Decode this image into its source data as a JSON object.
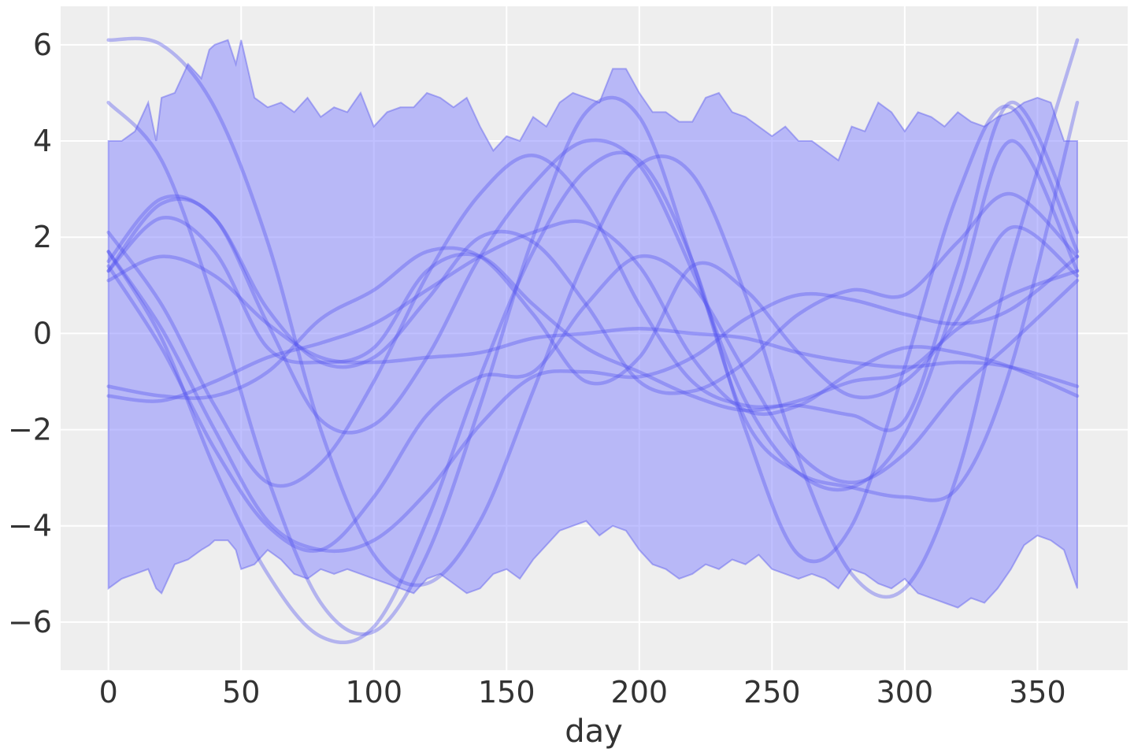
{
  "chart_data": {
    "type": "line",
    "title": "",
    "xlabel": "day",
    "ylabel": "",
    "xlim": [
      -18,
      384
    ],
    "ylim": [
      -7.0,
      6.8
    ],
    "xticks": [
      0,
      50,
      100,
      150,
      200,
      250,
      300,
      350
    ],
    "yticks": [
      -6,
      -4,
      -2,
      0,
      2,
      4,
      6
    ],
    "xtick_labels": [
      "0",
      "50",
      "100",
      "150",
      "200",
      "250",
      "300",
      "350"
    ],
    "ytick_labels": [
      "−6",
      "−4",
      "−2",
      "0",
      "2",
      "4",
      "6"
    ],
    "grid": true,
    "colors": {
      "background": "#eeeeee",
      "grid": "#ffffff",
      "band_fill": "#8c8cff",
      "band_edge": "#6666ee",
      "line": "#5555ee",
      "text": "#333333"
    },
    "band": {
      "x": [
        0,
        5,
        10,
        15,
        18,
        20,
        25,
        30,
        35,
        38,
        40,
        45,
        48,
        50,
        55,
        60,
        65,
        70,
        75,
        80,
        85,
        90,
        95,
        100,
        105,
        110,
        115,
        120,
        125,
        130,
        135,
        140,
        145,
        150,
        155,
        160,
        165,
        170,
        175,
        180,
        185,
        190,
        195,
        200,
        205,
        210,
        215,
        220,
        225,
        230,
        235,
        240,
        245,
        250,
        255,
        260,
        265,
        270,
        275,
        280,
        285,
        290,
        295,
        300,
        305,
        310,
        315,
        320,
        325,
        330,
        335,
        340,
        345,
        350,
        355,
        360,
        365
      ],
      "upper": [
        4.0,
        4.0,
        4.2,
        4.8,
        4.0,
        4.9,
        5.0,
        5.6,
        5.3,
        5.9,
        6.0,
        6.1,
        5.6,
        6.1,
        4.9,
        4.7,
        4.8,
        4.6,
        4.9,
        4.5,
        4.7,
        4.6,
        5.0,
        4.3,
        4.6,
        4.7,
        4.7,
        5.0,
        4.9,
        4.7,
        4.9,
        4.3,
        3.8,
        4.1,
        4.0,
        4.5,
        4.3,
        4.8,
        5.0,
        4.9,
        4.8,
        5.5,
        5.5,
        5.0,
        4.6,
        4.6,
        4.4,
        4.4,
        4.9,
        5.0,
        4.6,
        4.5,
        4.3,
        4.1,
        4.3,
        4.0,
        4.0,
        3.8,
        3.6,
        4.3,
        4.2,
        4.8,
        4.6,
        4.2,
        4.6,
        4.5,
        4.3,
        4.6,
        4.4,
        4.3,
        4.5,
        4.6,
        4.8,
        4.9,
        4.8,
        4.0,
        4.0
      ],
      "lower": [
        -5.3,
        -5.1,
        -5.0,
        -4.9,
        -5.3,
        -5.4,
        -4.8,
        -4.7,
        -4.5,
        -4.4,
        -4.3,
        -4.3,
        -4.5,
        -4.9,
        -4.8,
        -4.5,
        -4.7,
        -5.0,
        -5.1,
        -4.9,
        -5.0,
        -4.9,
        -5.0,
        -5.1,
        -5.2,
        -5.3,
        -5.4,
        -5.1,
        -5.0,
        -5.2,
        -5.4,
        -5.3,
        -5.0,
        -4.9,
        -5.1,
        -4.7,
        -4.4,
        -4.1,
        -4.0,
        -3.9,
        -4.2,
        -4.0,
        -4.1,
        -4.5,
        -4.8,
        -4.9,
        -5.1,
        -5.0,
        -4.8,
        -4.9,
        -4.7,
        -4.8,
        -4.6,
        -4.9,
        -5.0,
        -5.1,
        -5.0,
        -5.1,
        -5.3,
        -4.9,
        -5.0,
        -5.2,
        -5.3,
        -5.1,
        -5.4,
        -5.5,
        -5.6,
        -5.7,
        -5.5,
        -5.6,
        -5.3,
        -4.9,
        -4.4,
        -4.2,
        -4.3,
        -4.5,
        -5.3
      ]
    },
    "series": [
      {
        "x": [
          0,
          20,
          40,
          60,
          80,
          100,
          120,
          140,
          160,
          180,
          200,
          220,
          240,
          260,
          280,
          300,
          320,
          340,
          365
        ],
        "y": [
          6.1,
          6.0,
          4.7,
          1.9,
          -2.0,
          -4.6,
          -5.2,
          -3.9,
          -1.2,
          1.6,
          3.5,
          3.3,
          0.8,
          -2.6,
          -5.0,
          -5.3,
          -2.9,
          1.5,
          6.1
        ]
      },
      {
        "x": [
          0,
          20,
          40,
          60,
          80,
          100,
          120,
          140,
          160,
          180,
          200,
          220,
          240,
          260,
          280,
          300,
          320,
          340,
          365
        ],
        "y": [
          4.8,
          3.6,
          0.6,
          -3.0,
          -5.6,
          -6.2,
          -4.6,
          -1.5,
          2.0,
          4.6,
          4.5,
          1.5,
          -1.8,
          -2.9,
          -3.2,
          -3.4,
          -3.2,
          -0.7,
          4.8
        ]
      },
      {
        "x": [
          0,
          20,
          40,
          60,
          80,
          100,
          120,
          140,
          160,
          180,
          200,
          220,
          240,
          260,
          280,
          300,
          320,
          340,
          365
        ],
        "y": [
          1.7,
          -0.1,
          -2.8,
          -5.0,
          -6.3,
          -6.1,
          -3.9,
          -0.9,
          1.7,
          3.4,
          3.6,
          1.5,
          -2.0,
          -4.6,
          -4.0,
          -0.7,
          2.9,
          4.7,
          1.7
        ]
      },
      {
        "x": [
          0,
          20,
          40,
          60,
          80,
          100,
          120,
          140,
          160,
          180,
          200,
          220,
          240,
          260,
          280,
          300,
          320,
          340,
          365
        ],
        "y": [
          1.3,
          2.7,
          2.4,
          0.2,
          -1.8,
          -1.9,
          -0.5,
          1.6,
          3.1,
          4.0,
          3.5,
          1.3,
          -1.4,
          -2.9,
          -3.2,
          -2.1,
          0.8,
          4.0,
          1.3
        ]
      },
      {
        "x": [
          0,
          20,
          40,
          60,
          80,
          100,
          120,
          140,
          160,
          180,
          200,
          220,
          240,
          260,
          280,
          300,
          320,
          340,
          365
        ],
        "y": [
          2.1,
          0.6,
          -1.5,
          -3.1,
          -2.7,
          -1.0,
          1.2,
          2.9,
          3.7,
          2.7,
          0.6,
          -1.0,
          -1.5,
          -1.5,
          -1.7,
          -1.8,
          1.4,
          4.8,
          2.1
        ]
      },
      {
        "x": [
          0,
          20,
          40,
          60,
          80,
          100,
          120,
          140,
          160,
          180,
          200,
          220,
          240,
          260,
          280,
          300,
          320,
          340,
          365
        ],
        "y": [
          1.5,
          2.8,
          2.4,
          0.5,
          -0.6,
          -0.5,
          0.7,
          2.0,
          1.9,
          0.6,
          -1.0,
          -1.2,
          -0.6,
          0.4,
          0.9,
          0.8,
          1.9,
          2.9,
          1.6
        ]
      },
      {
        "x": [
          0,
          20,
          40,
          60,
          80,
          100,
          120,
          140,
          160,
          180,
          200,
          220,
          240,
          260,
          280,
          300,
          320,
          340,
          365
        ],
        "y": [
          1.1,
          1.6,
          1.2,
          0.2,
          -0.5,
          -0.6,
          -0.5,
          -0.4,
          -0.1,
          0.0,
          0.1,
          0.0,
          -0.1,
          -0.4,
          -0.6,
          -0.7,
          -0.6,
          -0.7,
          -1.1
        ]
      },
      {
        "x": [
          0,
          20,
          40,
          60,
          80,
          100,
          120,
          140,
          160,
          180,
          200,
          220,
          240,
          260,
          280,
          300,
          320,
          340,
          365
        ],
        "y": [
          1.3,
          2.4,
          1.7,
          -0.3,
          -0.6,
          -0.3,
          1.3,
          1.6,
          0.6,
          -0.3,
          -0.8,
          -1.3,
          -1.6,
          -1.4,
          -1.0,
          -0.8,
          0.1,
          0.8,
          1.3
        ]
      },
      {
        "x": [
          0,
          20,
          40,
          60,
          80,
          100,
          120,
          140,
          160,
          180,
          200,
          220,
          240,
          260,
          280,
          300,
          320,
          340,
          365
        ],
        "y": [
          -1.1,
          -1.3,
          -1.3,
          -0.8,
          0.3,
          0.9,
          1.7,
          1.6,
          0.4,
          -1.0,
          -0.5,
          1.4,
          0.9,
          -0.4,
          -1.3,
          -1.0,
          0.3,
          2.2,
          1.2
        ]
      },
      {
        "x": [
          0,
          20,
          40,
          60,
          80,
          100,
          120,
          140,
          160,
          180,
          200,
          220,
          240,
          260,
          280,
          300,
          320,
          340,
          365
        ],
        "y": [
          -1.3,
          -1.4,
          -1.0,
          -0.5,
          -0.2,
          0.2,
          0.9,
          1.6,
          2.1,
          2.3,
          1.4,
          -0.5,
          -1.6,
          -1.5,
          -0.8,
          -0.3,
          -0.4,
          -0.7,
          -1.3
        ]
      },
      {
        "x": [
          0,
          20,
          40,
          60,
          80,
          100,
          120,
          140,
          160,
          180,
          200,
          220,
          240,
          260,
          280,
          300,
          320,
          340,
          365
        ],
        "y": [
          1.7,
          0.1,
          -2.0,
          -3.9,
          -4.5,
          -4.3,
          -3.3,
          -1.9,
          -0.9,
          -0.8,
          -0.9,
          -0.5,
          0.3,
          0.8,
          0.7,
          0.4,
          0.2,
          0.5,
          1.6
        ]
      },
      {
        "x": [
          0,
          20,
          40,
          60,
          80,
          100,
          120,
          140,
          160,
          180,
          200,
          220,
          240,
          260,
          280,
          300,
          320,
          340,
          365
        ],
        "y": [
          1.4,
          -0.3,
          -2.4,
          -4.0,
          -4.5,
          -3.4,
          -1.7,
          -0.9,
          -0.8,
          0.6,
          1.6,
          1.0,
          -0.8,
          -2.5,
          -3.1,
          -2.5,
          -1.2,
          -0.2,
          1.1
        ]
      }
    ]
  }
}
